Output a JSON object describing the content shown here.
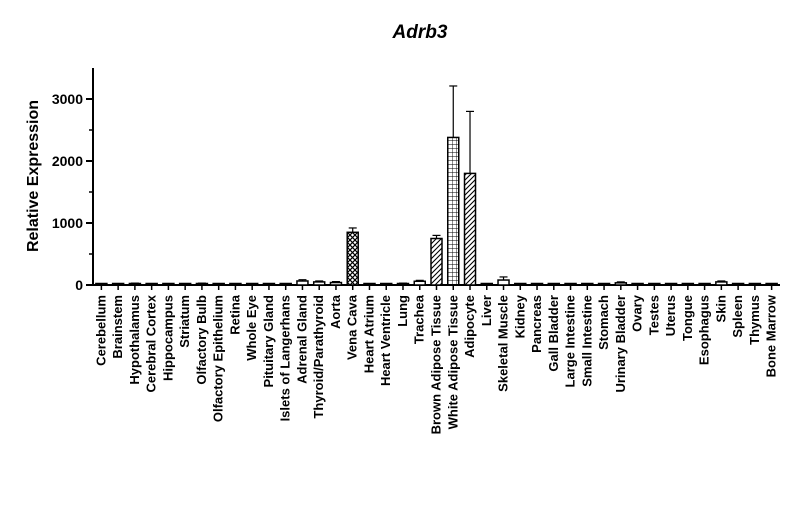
{
  "chart_data": {
    "type": "bar",
    "title": "Adrb3",
    "xlabel": "",
    "ylabel": "Relative Expression",
    "ylim": [
      0,
      3500
    ],
    "yticks": [
      0,
      1000,
      2000,
      3000
    ],
    "grid": false,
    "legend": "none",
    "categories": [
      "Cerebellum",
      "Brainstem",
      "Hypothalamus",
      "Cerebral Cortex",
      "Hippocampus",
      "Striatum",
      "Olfactory Bulb",
      "Olfactory Epithelium",
      "Retina",
      "Whole Eye",
      "Pituitary Gland",
      "Islets of Langerhans",
      "Adrenal Gland",
      "Thyroid/Parathyroid",
      "Aorta",
      "Vena Cava",
      "Heart Atrium",
      "Heart Ventricle",
      "Lung",
      "Trachea",
      "Brown Adipose Tissue",
      "White Adipose Tissue",
      "Adipocyte",
      "Liver",
      "Skeletal Muscle",
      "Kidney",
      "Pancreas",
      "Gall Bladder",
      "Large Intestine",
      "Small Intestine",
      "Stomach",
      "Urinary Bladder",
      "Ovary",
      "Testes",
      "Uterus",
      "Tongue",
      "Esophagus",
      "Skin",
      "Spleen",
      "Thymus",
      "Bone Marrow"
    ],
    "values": [
      5,
      15,
      20,
      15,
      15,
      15,
      20,
      3,
      3,
      5,
      3,
      3,
      65,
      50,
      40,
      850,
      3,
      3,
      20,
      60,
      750,
      2380,
      1800,
      3,
      80,
      3,
      3,
      15,
      5,
      5,
      5,
      35,
      3,
      3,
      3,
      3,
      3,
      50,
      3,
      5,
      3
    ],
    "errors": [
      3,
      8,
      10,
      8,
      8,
      8,
      10,
      2,
      2,
      3,
      2,
      2,
      20,
      15,
      15,
      70,
      2,
      2,
      10,
      15,
      50,
      830,
      1000,
      2,
      50,
      2,
      2,
      5,
      3,
      3,
      3,
      15,
      2,
      2,
      2,
      2,
      2,
      15,
      2,
      3,
      2
    ],
    "bar_styles": {
      "15": "crosshatch",
      "20": "diagonal",
      "21": "grid",
      "22": "diagonal"
    }
  }
}
